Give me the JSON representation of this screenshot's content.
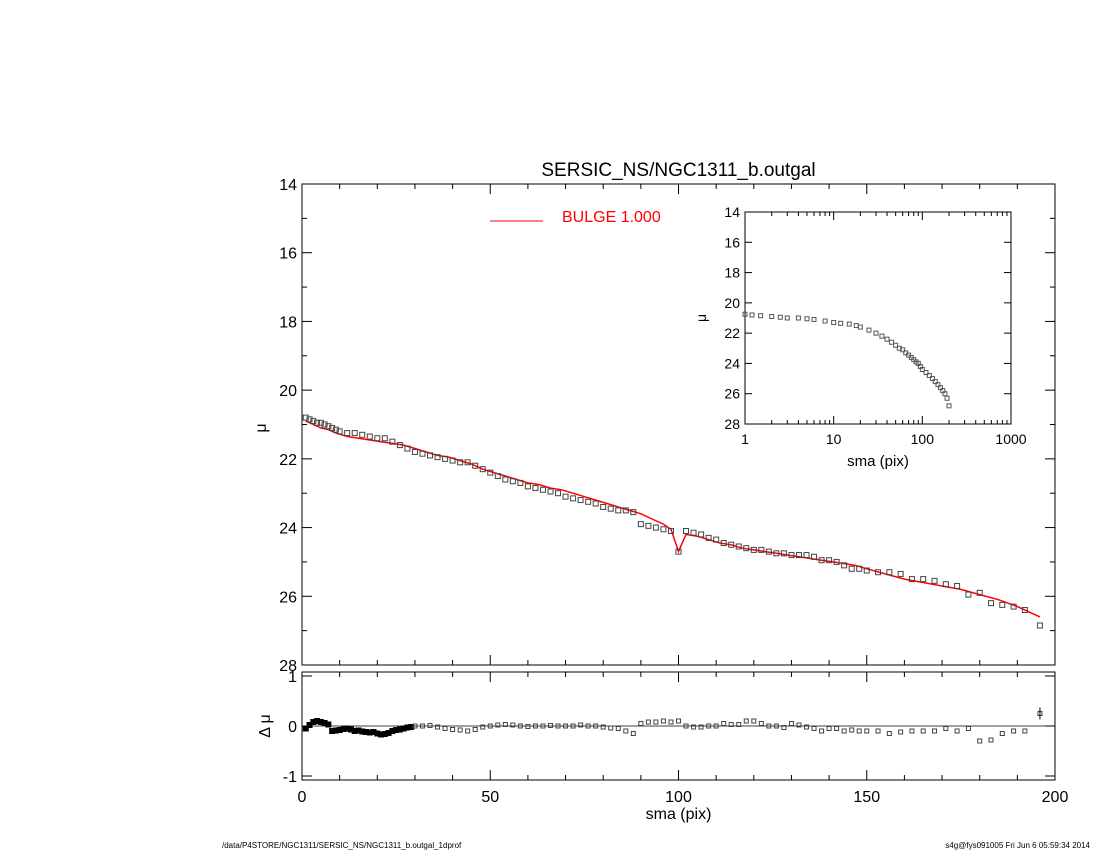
{
  "chart_data": [
    {
      "panel": "main",
      "type": "scatter",
      "title": "SERSIC_NS/NGC1311_b.outgal",
      "ylabel": "μ",
      "xlim": [
        0,
        200
      ],
      "ylim": [
        28,
        14
      ],
      "y_inverted": true,
      "yticks": [
        14,
        16,
        18,
        20,
        22,
        24,
        26,
        28
      ],
      "grid": false,
      "legend": {
        "position": "top-center",
        "entries": [
          {
            "label": "BULGE  1.000",
            "color": "#ff0000"
          }
        ]
      },
      "series": [
        {
          "name": "data",
          "marker": "square",
          "color": "#444444",
          "x": [
            1,
            2,
            3,
            4,
            5,
            6,
            7,
            8,
            9,
            10,
            12,
            14,
            16,
            18,
            20,
            22,
            24,
            26,
            28,
            30,
            32,
            34,
            36,
            38,
            40,
            42,
            44,
            46,
            48,
            50,
            52,
            54,
            56,
            58,
            60,
            62,
            64,
            66,
            68,
            70,
            72,
            74,
            76,
            78,
            80,
            82,
            84,
            86,
            88,
            90,
            92,
            94,
            96,
            98,
            100,
            102,
            104,
            106,
            108,
            110,
            112,
            114,
            116,
            118,
            120,
            122,
            124,
            126,
            128,
            130,
            132,
            134,
            136,
            138,
            140,
            142,
            144,
            146,
            148,
            150,
            153,
            156,
            159,
            162,
            165,
            168,
            171,
            174,
            177,
            180,
            183,
            186,
            189,
            192,
            196
          ],
          "y": [
            20.8,
            20.85,
            20.9,
            20.95,
            20.95,
            21.0,
            21.05,
            21.1,
            21.15,
            21.2,
            21.25,
            21.25,
            21.3,
            21.35,
            21.4,
            21.4,
            21.5,
            21.6,
            21.7,
            21.8,
            21.85,
            21.9,
            21.95,
            22.0,
            22.05,
            22.1,
            22.1,
            22.2,
            22.3,
            22.4,
            22.5,
            22.6,
            22.65,
            22.7,
            22.8,
            22.85,
            22.9,
            22.95,
            23.0,
            23.1,
            23.15,
            23.2,
            23.25,
            23.3,
            23.4,
            23.45,
            23.5,
            23.5,
            23.55,
            23.9,
            23.95,
            24.0,
            24.05,
            24.1,
            24.7,
            24.1,
            24.15,
            24.2,
            24.3,
            24.35,
            24.45,
            24.5,
            24.55,
            24.6,
            24.65,
            24.65,
            24.7,
            24.75,
            24.75,
            24.8,
            24.8,
            24.8,
            24.85,
            24.95,
            24.95,
            25.0,
            25.1,
            25.2,
            25.2,
            25.25,
            25.3,
            25.3,
            25.35,
            25.5,
            25.5,
            25.55,
            25.65,
            25.7,
            25.95,
            25.9,
            26.2,
            26.25,
            26.3,
            26.4,
            26.85
          ]
        },
        {
          "name": "BULGE  1.000",
          "type": "line",
          "color": "#ff0000",
          "x": [
            1,
            3,
            5,
            7,
            9,
            12,
            15,
            18,
            21,
            24,
            27,
            30,
            33,
            36,
            39,
            42,
            45,
            48,
            51,
            54,
            57,
            60,
            63,
            66,
            69,
            72,
            75,
            78,
            81,
            84,
            87,
            90,
            93,
            96,
            98,
            100,
            102,
            105,
            108,
            111,
            114,
            117,
            120,
            123,
            126,
            129,
            132,
            135,
            138,
            141,
            144,
            147,
            150,
            155,
            160,
            165,
            170,
            175,
            180,
            185,
            190,
            196
          ],
          "y": [
            20.9,
            21.0,
            21.1,
            21.15,
            21.25,
            21.35,
            21.4,
            21.45,
            21.5,
            21.55,
            21.6,
            21.7,
            21.8,
            21.9,
            21.95,
            22.05,
            22.15,
            22.3,
            22.4,
            22.5,
            22.6,
            22.7,
            22.75,
            22.85,
            22.9,
            23.0,
            23.1,
            23.2,
            23.3,
            23.4,
            23.5,
            23.6,
            23.75,
            23.9,
            24.05,
            24.7,
            24.2,
            24.25,
            24.35,
            24.45,
            24.5,
            24.6,
            24.65,
            24.7,
            24.75,
            24.8,
            24.85,
            24.9,
            24.95,
            25.0,
            25.05,
            25.1,
            25.2,
            25.35,
            25.5,
            25.6,
            25.7,
            25.8,
            25.95,
            26.1,
            26.3,
            26.6
          ]
        }
      ]
    },
    {
      "panel": "residual",
      "type": "scatter",
      "xlabel": "sma (pix)",
      "ylabel": "Δ μ",
      "xlim": [
        0,
        200
      ],
      "xticks": [
        0,
        50,
        100,
        150,
        200
      ],
      "ylim": [
        -1,
        1
      ],
      "yticks": [
        -1,
        0,
        1
      ],
      "zero_line": true,
      "series": [
        {
          "name": "",
          "marker": "square",
          "color": "#444444",
          "x": [
            1,
            2,
            3,
            4,
            5,
            6,
            7,
            8,
            9,
            10,
            11,
            12,
            13,
            14,
            15,
            16,
            17,
            18,
            19,
            20,
            21,
            22,
            23,
            24,
            25,
            26,
            27,
            28,
            29,
            30,
            32,
            34,
            36,
            38,
            40,
            42,
            44,
            46,
            48,
            50,
            52,
            54,
            56,
            58,
            60,
            62,
            64,
            66,
            68,
            70,
            72,
            74,
            76,
            78,
            80,
            82,
            84,
            86,
            88,
            90,
            92,
            94,
            96,
            98,
            100,
            102,
            104,
            106,
            108,
            110,
            112,
            114,
            116,
            118,
            120,
            122,
            124,
            126,
            128,
            130,
            132,
            134,
            136,
            138,
            140,
            142,
            144,
            146,
            148,
            150,
            153,
            156,
            159,
            162,
            165,
            168,
            171,
            174,
            177,
            180,
            183,
            186,
            189,
            192,
            196
          ],
          "y": [
            -0.05,
            0.02,
            0.08,
            0.1,
            0.08,
            0.06,
            0.03,
            -0.1,
            -0.09,
            -0.08,
            -0.06,
            -0.05,
            -0.07,
            -0.1,
            -0.09,
            -0.11,
            -0.12,
            -0.13,
            -0.12,
            -0.15,
            -0.17,
            -0.16,
            -0.14,
            -0.1,
            -0.08,
            -0.07,
            -0.05,
            -0.03,
            -0.02,
            0.0,
            0.0,
            0.01,
            -0.02,
            -0.05,
            -0.07,
            -0.08,
            -0.1,
            -0.07,
            -0.02,
            0.0,
            0.02,
            0.03,
            0.02,
            0.0,
            -0.01,
            0.0,
            0.0,
            0.01,
            0.0,
            0.0,
            0.0,
            0.02,
            0.0,
            0.0,
            -0.02,
            -0.04,
            -0.05,
            -0.1,
            -0.15,
            0.05,
            0.08,
            0.08,
            0.1,
            0.08,
            0.1,
            0.0,
            -0.02,
            -0.02,
            0.0,
            0.0,
            0.05,
            0.03,
            0.03,
            0.1,
            0.1,
            0.05,
            0.0,
            0.0,
            -0.03,
            0.05,
            0.02,
            -0.02,
            -0.05,
            -0.1,
            -0.05,
            -0.05,
            -0.1,
            -0.08,
            -0.1,
            -0.1,
            -0.1,
            -0.15,
            -0.12,
            -0.1,
            -0.1,
            -0.1,
            -0.05,
            -0.1,
            -0.05,
            -0.3,
            -0.28,
            -0.15,
            -0.1,
            -0.1,
            0.25
          ]
        }
      ]
    },
    {
      "panel": "inset",
      "type": "scatter",
      "xlabel": "sma (pix)",
      "ylabel": "μ",
      "x_scale": "log",
      "xlim": [
        1,
        1000
      ],
      "xticks": [
        1,
        10,
        100,
        1000
      ],
      "ylim": [
        28,
        14
      ],
      "y_inverted": true,
      "yticks": [
        14,
        16,
        18,
        20,
        22,
        24,
        26,
        28
      ],
      "series": [
        {
          "name": "",
          "marker": "square",
          "color": "#555555",
          "x": [
            1,
            1.2,
            1.5,
            2,
            2.5,
            3,
            4,
            5,
            6,
            8,
            10,
            12,
            15,
            18,
            20,
            25,
            30,
            35,
            40,
            45,
            50,
            55,
            60,
            65,
            70,
            75,
            80,
            85,
            90,
            95,
            100,
            110,
            120,
            130,
            140,
            150,
            160,
            170,
            180,
            190,
            200
          ],
          "y": [
            20.75,
            20.8,
            20.85,
            20.9,
            20.95,
            21.0,
            21.0,
            21.05,
            21.1,
            21.2,
            21.3,
            21.35,
            21.4,
            21.5,
            21.6,
            21.8,
            22.0,
            22.2,
            22.4,
            22.6,
            22.8,
            23.0,
            23.1,
            23.3,
            23.45,
            23.6,
            23.75,
            23.9,
            24.0,
            24.2,
            24.4,
            24.6,
            24.8,
            25.0,
            25.2,
            25.4,
            25.6,
            25.8,
            26.0,
            26.3,
            26.8
          ]
        }
      ]
    }
  ],
  "footer": {
    "left": "/data/P4STORE/NGC1311/SERSIC_NS/NGC1311_b.outgal_1dprof",
    "right": "s4g@fys091005  Fri Jun  6 05:59:34 2014"
  }
}
